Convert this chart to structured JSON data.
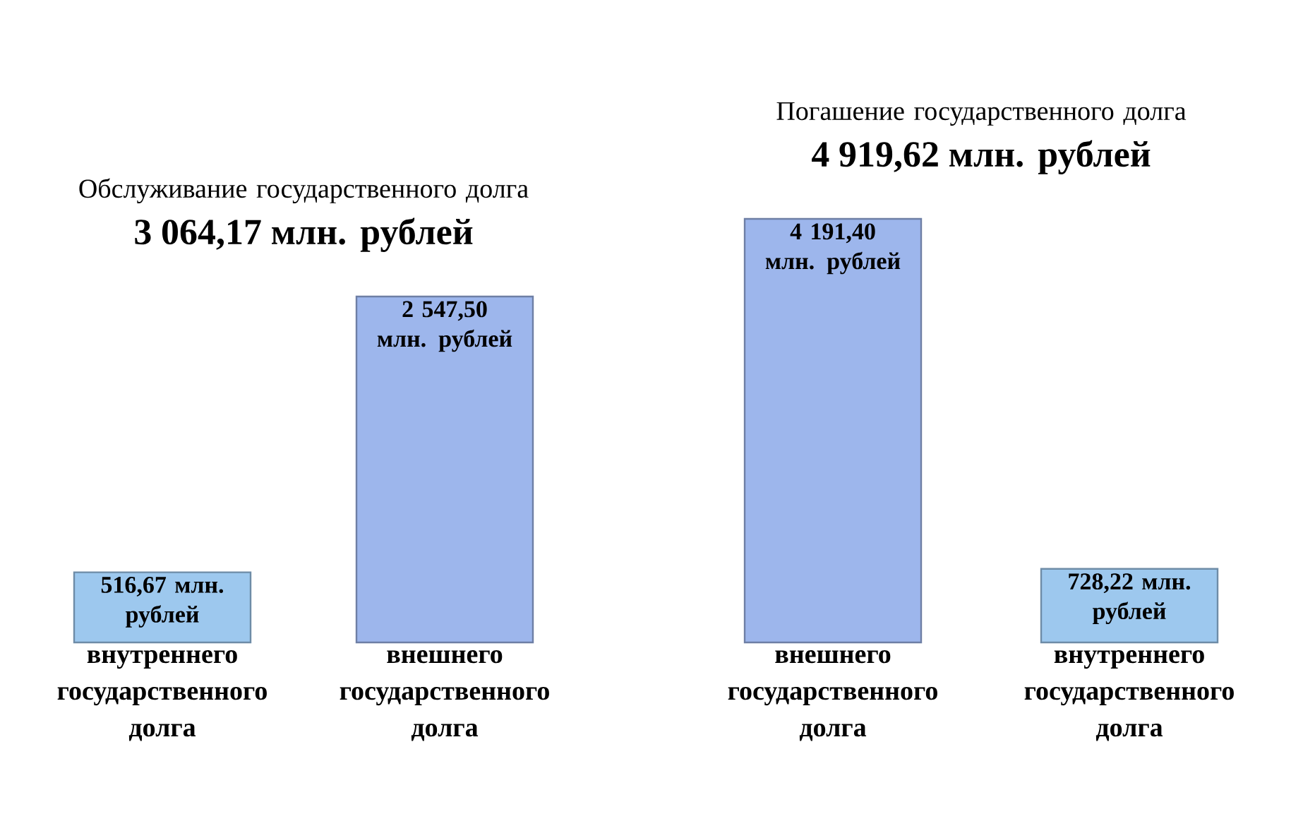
{
  "chart_data": [
    {
      "type": "bar",
      "title": "Обслуживание государственного долга",
      "subtitle": "3 064,17 млн. рублей",
      "categories": [
        "внутреннего государственного долга",
        "внешнего государственного долга"
      ],
      "values": [
        516.67,
        2547.5
      ],
      "colors": [
        "#9dc8ee",
        "#9db6ec"
      ],
      "value_labels": [
        "516,67 млн. рублей",
        "2 547,50 млн. рублей"
      ]
    },
    {
      "type": "bar",
      "title": "Погашение государственного долга",
      "subtitle": "4 919,62 млн. рублей",
      "categories": [
        "внешнего государственного долга",
        "внутреннего государственного долга"
      ],
      "values": [
        4191.4,
        728.22
      ],
      "colors": [
        "#9db6ec",
        "#9dc8ee"
      ],
      "value_labels": [
        "4 191,40 млн. рублей",
        "728,22 млн. рублей"
      ]
    }
  ]
}
